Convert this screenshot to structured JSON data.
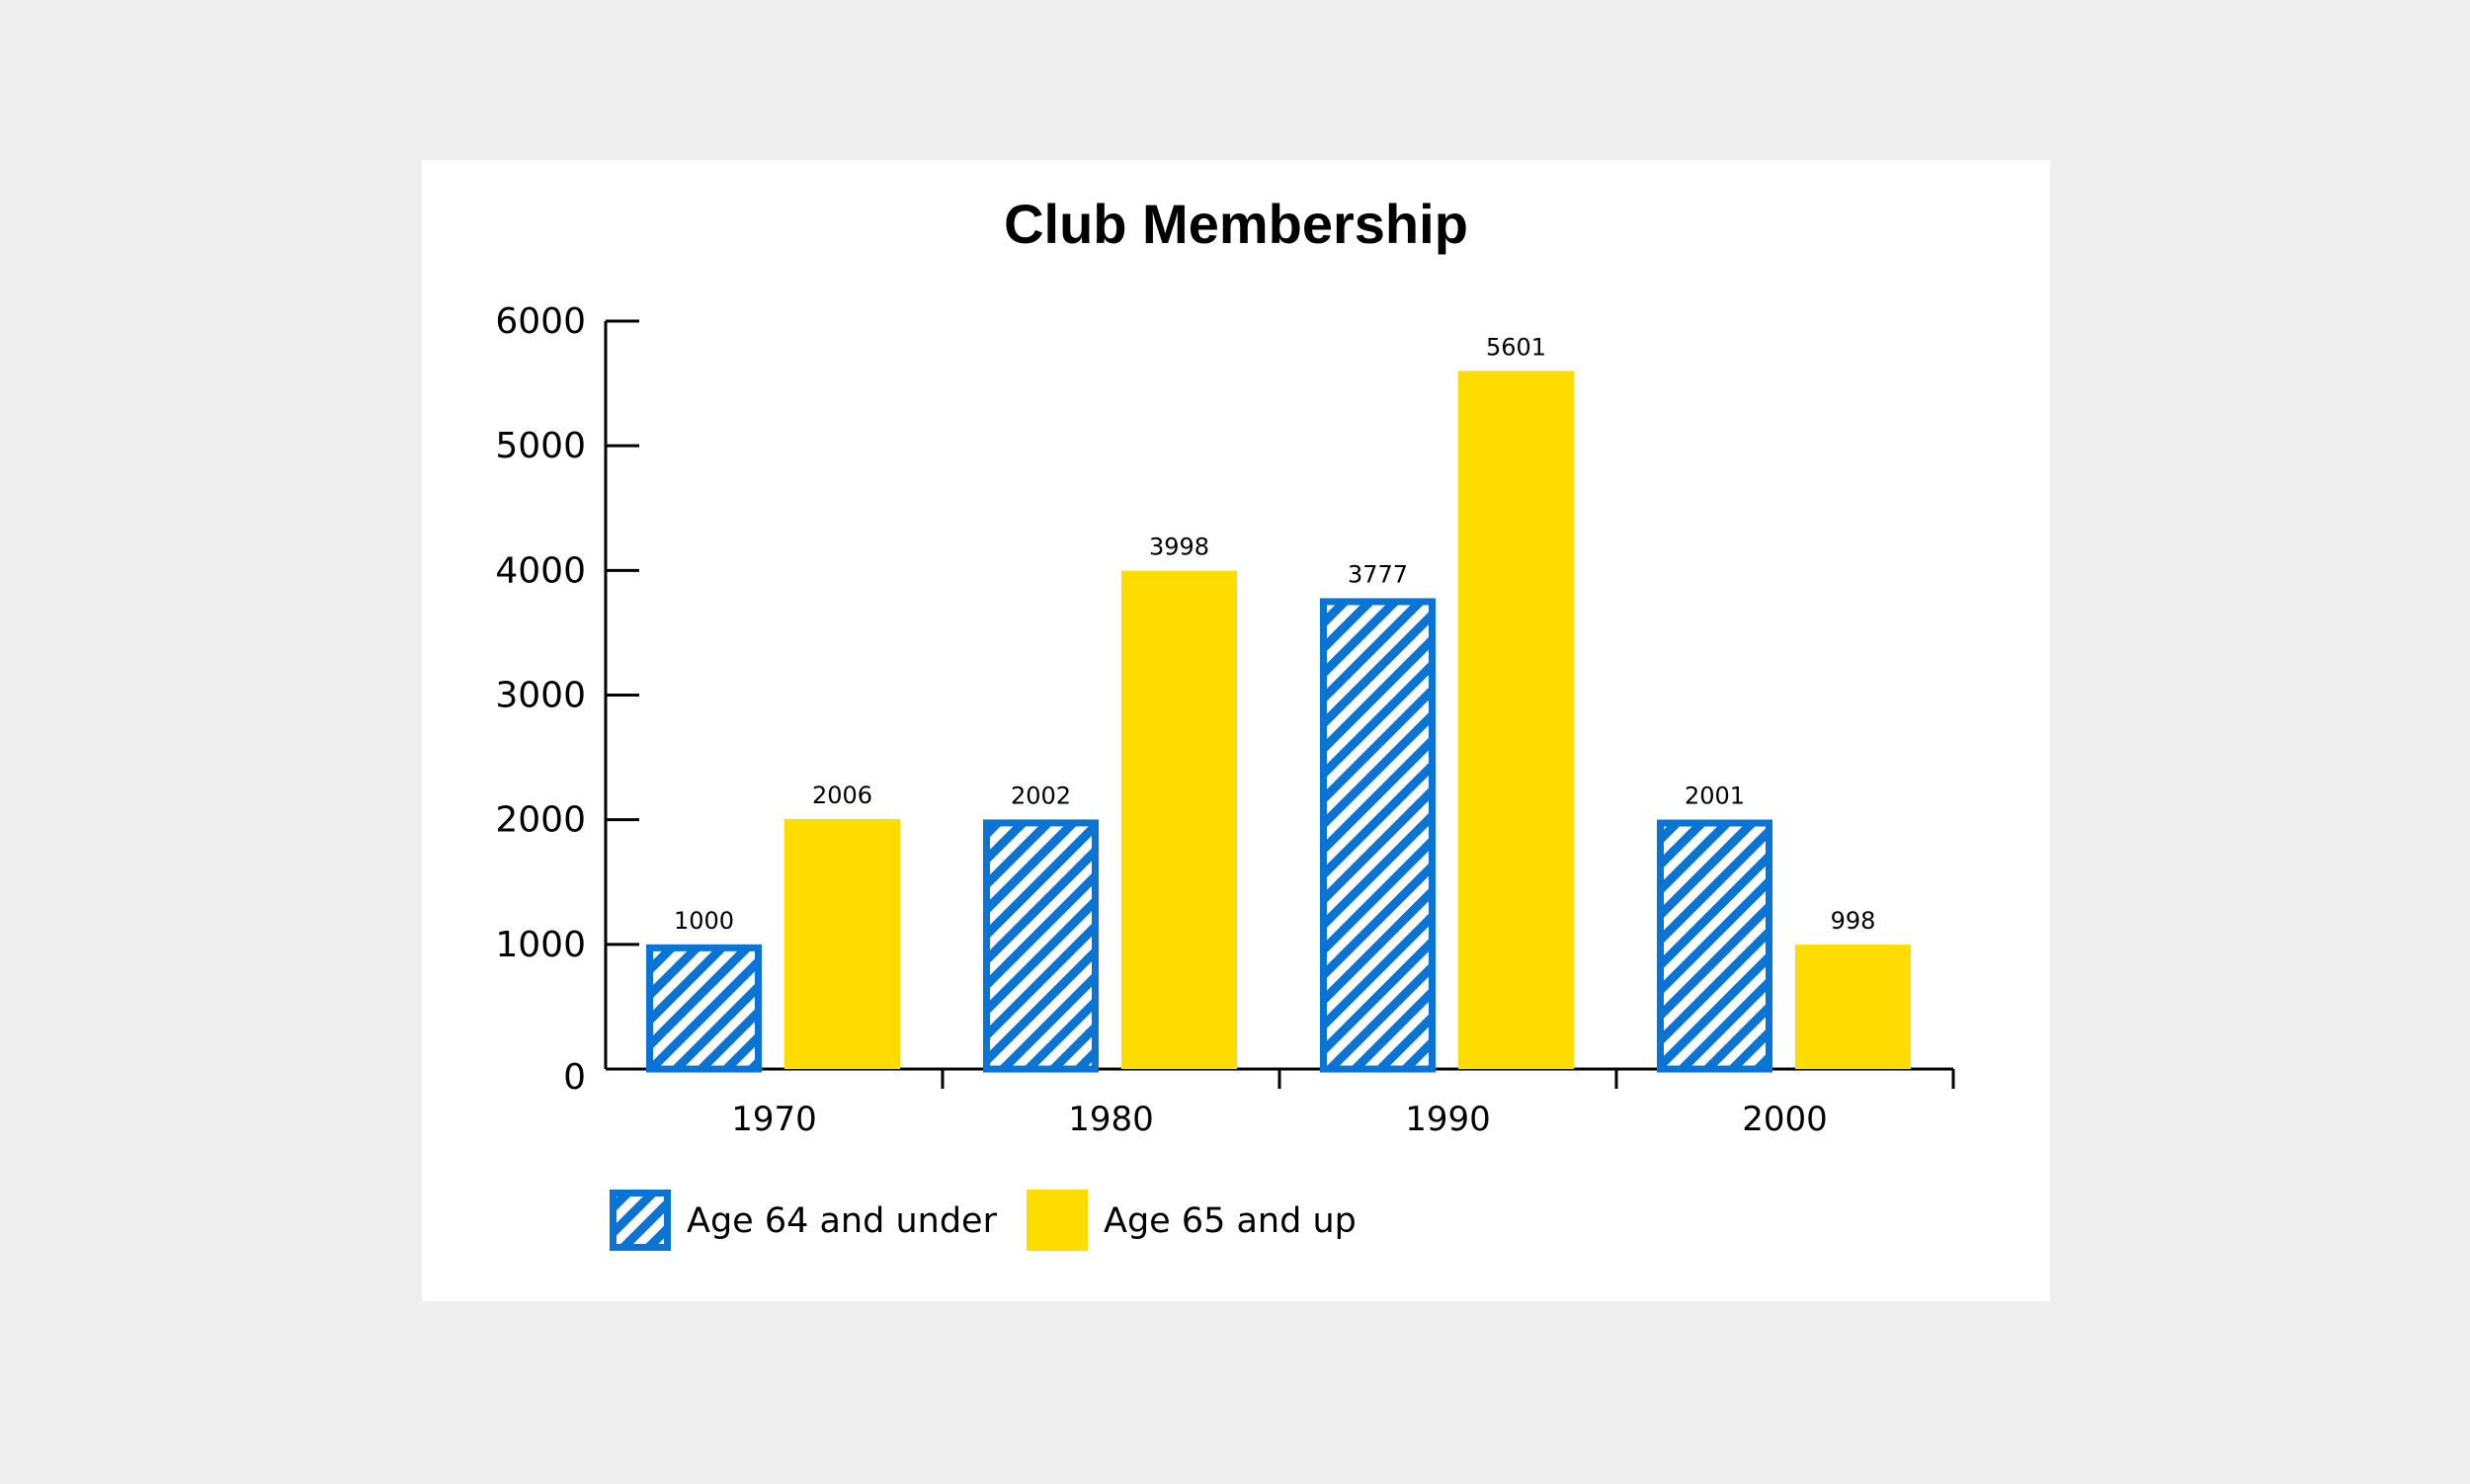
{
  "chart_data": {
    "type": "bar",
    "title": "Club Membership",
    "xlabel": "",
    "ylabel": "",
    "categories": [
      "1970",
      "1980",
      "1990",
      "2000"
    ],
    "ylim": [
      0,
      6000
    ],
    "yticks": [
      "0",
      "1000",
      "2000",
      "3000",
      "4000",
      "5000",
      "6000"
    ],
    "grid": false,
    "legend_position": "bottom-left",
    "series": [
      {
        "name": "Age 64 and under",
        "values": [
          1000,
          2002,
          3777,
          2001
        ],
        "labels": [
          "1000",
          "2002",
          "3777",
          "2001"
        ],
        "color": "#0a74d4",
        "fill": "diagonal-stripes"
      },
      {
        "name": "Age 65 and up",
        "values": [
          2006,
          3998,
          5601,
          998
        ],
        "labels": [
          "2006",
          "3998",
          "5601",
          "998"
        ],
        "color": "#ffdc00",
        "fill": "solid"
      }
    ]
  }
}
